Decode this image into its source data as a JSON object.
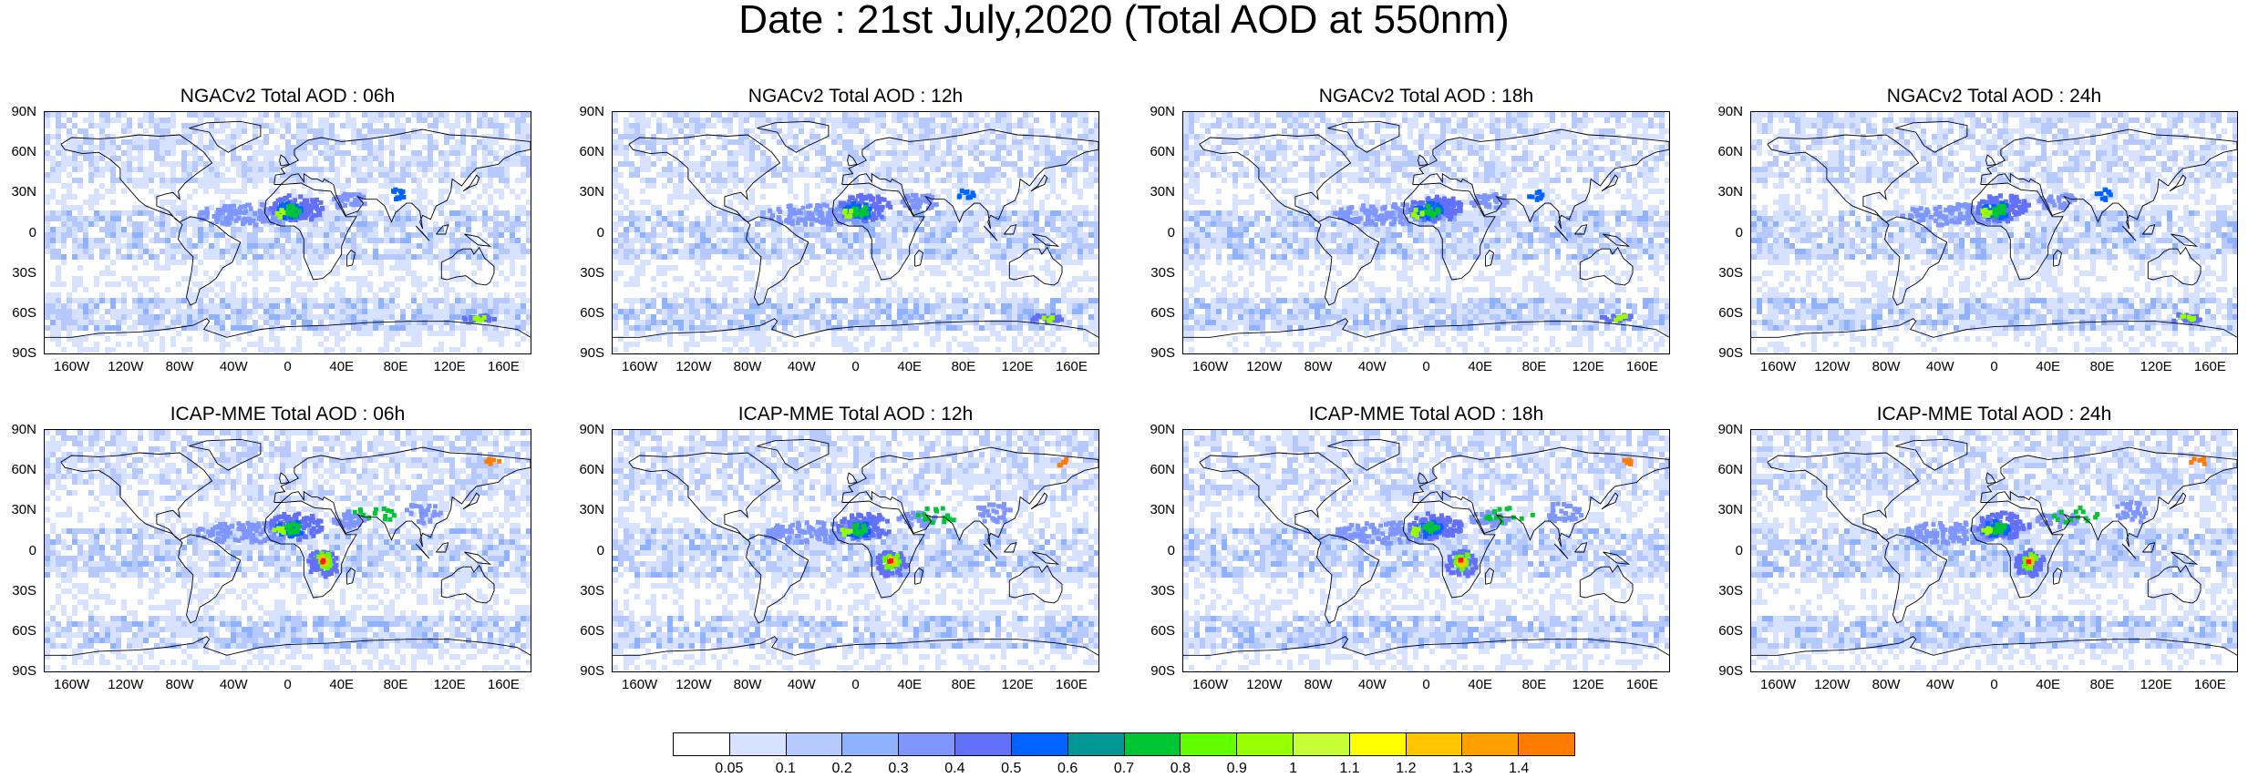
{
  "title": "Date : 21st July,2020 (Total AOD at 550nm)",
  "y_ticks": [
    "90N",
    "60N",
    "30N",
    "0",
    "30S",
    "60S",
    "90S"
  ],
  "x_ticks": [
    "160W",
    "120W",
    "80W",
    "40W",
    "0",
    "40E",
    "80E",
    "120E",
    "160E"
  ],
  "panels": [
    {
      "title": "NGACv2 Total AOD : 06h",
      "model": "NGACv2",
      "hour": "06h"
    },
    {
      "title": "NGACv2 Total AOD : 12h",
      "model": "NGACv2",
      "hour": "12h"
    },
    {
      "title": "NGACv2 Total AOD : 18h",
      "model": "NGACv2",
      "hour": "18h"
    },
    {
      "title": "NGACv2 Total AOD : 24h",
      "model": "NGACv2",
      "hour": "24h"
    },
    {
      "title": "ICAP-MME Total AOD : 06h",
      "model": "ICAP-MME",
      "hour": "06h"
    },
    {
      "title": "ICAP-MME Total AOD : 12h",
      "model": "ICAP-MME",
      "hour": "12h"
    },
    {
      "title": "ICAP-MME Total AOD : 18h",
      "model": "ICAP-MME",
      "hour": "18h"
    },
    {
      "title": "ICAP-MME Total AOD : 24h",
      "model": "ICAP-MME",
      "hour": "24h"
    }
  ],
  "colorbar": {
    "labels": [
      "0.05",
      "0.1",
      "0.2",
      "0.3",
      "0.4",
      "0.5",
      "0.6",
      "0.7",
      "0.8",
      "0.9",
      "1",
      "1.1",
      "1.2",
      "1.3",
      "1.4"
    ],
    "colors": [
      "#ffffff",
      "#d6e2ff",
      "#b5c9ff",
      "#8eb2ff",
      "#7f96ff",
      "#6370f8",
      "#0063ff",
      "#009696",
      "#00c633",
      "#63ff00",
      "#96ff00",
      "#c6ff33",
      "#ffff00",
      "#ffc600",
      "#ffa000",
      "#ff7c00",
      "#ff1900"
    ]
  }
}
